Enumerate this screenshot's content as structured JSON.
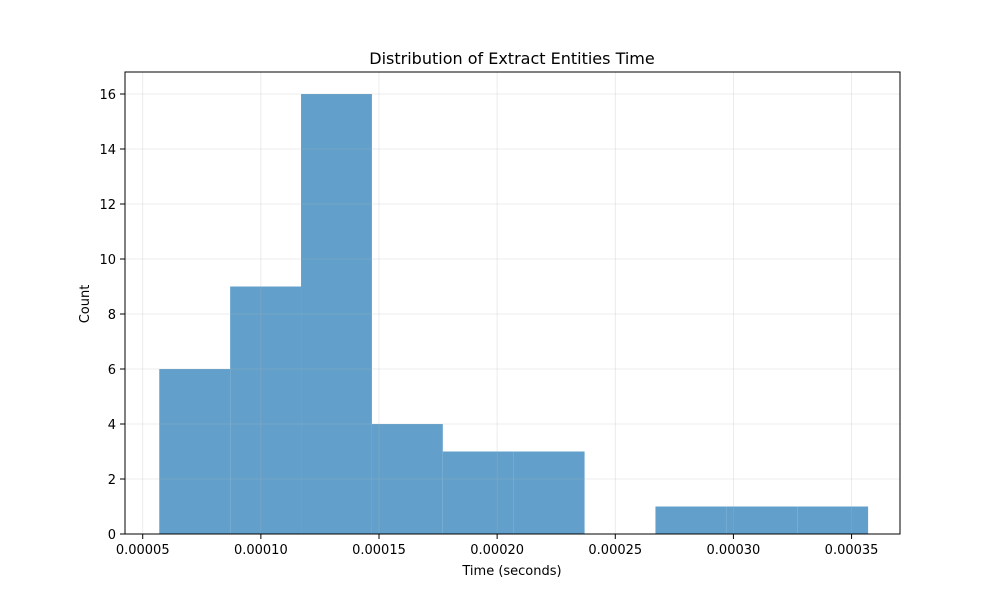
{
  "chart_data": {
    "type": "bar",
    "title": "Distribution of Extract Entities Time",
    "xlabel": "Time (seconds)",
    "ylabel": "Count",
    "xlim": [
      4.25e-05,
      0.0003705
    ],
    "ylim": [
      0,
      16.8
    ],
    "x_ticks": [
      5e-05,
      0.0001,
      0.00015,
      0.0002,
      0.00025,
      0.0003,
      0.00035
    ],
    "x_tick_labels": [
      "0.00005",
      "0.00010",
      "0.00015",
      "0.00020",
      "0.00025",
      "0.00030",
      "0.00035"
    ],
    "y_ticks": [
      0,
      2,
      4,
      6,
      8,
      10,
      12,
      14,
      16
    ],
    "y_tick_labels": [
      "0",
      "2",
      "4",
      "6",
      "8",
      "10",
      "12",
      "14",
      "16"
    ],
    "grid": true,
    "bar_color": "#62a0cb",
    "bins": [
      {
        "x0": 5.7e-05,
        "x1": 8.7e-05,
        "count": 6
      },
      {
        "x0": 8.7e-05,
        "x1": 0.000117,
        "count": 9
      },
      {
        "x0": 0.000117,
        "x1": 0.000147,
        "count": 16
      },
      {
        "x0": 0.000147,
        "x1": 0.000177,
        "count": 4
      },
      {
        "x0": 0.000177,
        "x1": 0.000207,
        "count": 3
      },
      {
        "x0": 0.000207,
        "x1": 0.000237,
        "count": 3
      },
      {
        "x0": 0.000237,
        "x1": 0.000267,
        "count": 0
      },
      {
        "x0": 0.000267,
        "x1": 0.000297,
        "count": 1
      },
      {
        "x0": 0.000297,
        "x1": 0.000327,
        "count": 1
      },
      {
        "x0": 0.000327,
        "x1": 0.000357,
        "count": 1
      }
    ]
  }
}
